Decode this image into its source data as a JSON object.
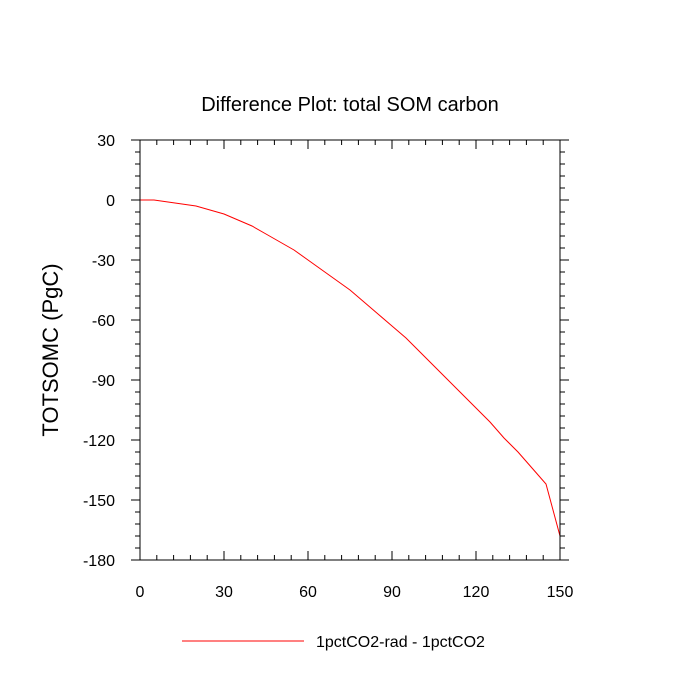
{
  "chart_data": {
    "type": "line",
    "title": "Difference Plot: total SOM carbon",
    "xlabel": "",
    "ylabel": "TOTSOMC  (PgC)",
    "xlim": [
      0,
      150
    ],
    "ylim": [
      -180,
      30
    ],
    "xticks": [
      0,
      30,
      60,
      90,
      120,
      150
    ],
    "yticks": [
      30,
      0,
      -30,
      -60,
      -90,
      -120,
      -150,
      -180
    ],
    "grid": false,
    "legend_position": "bottom",
    "series": [
      {
        "name": "1pctCO2-rad - 1pctCO2",
        "color": "#ff0000",
        "x": [
          0,
          5,
          10,
          15,
          20,
          25,
          30,
          35,
          40,
          45,
          50,
          55,
          60,
          65,
          70,
          75,
          80,
          85,
          90,
          95,
          100,
          105,
          110,
          115,
          120,
          125,
          130,
          135,
          140,
          145,
          150
        ],
        "y": [
          0,
          0,
          -1,
          -2,
          -3,
          -5,
          -7,
          -10,
          -13,
          -17,
          -21,
          -25,
          -30,
          -35,
          -40,
          -45,
          -51,
          -57,
          -63,
          -69,
          -76,
          -83,
          -90,
          -97,
          -104,
          -111,
          -119,
          -126,
          -134,
          -142,
          -168
        ]
      }
    ]
  }
}
